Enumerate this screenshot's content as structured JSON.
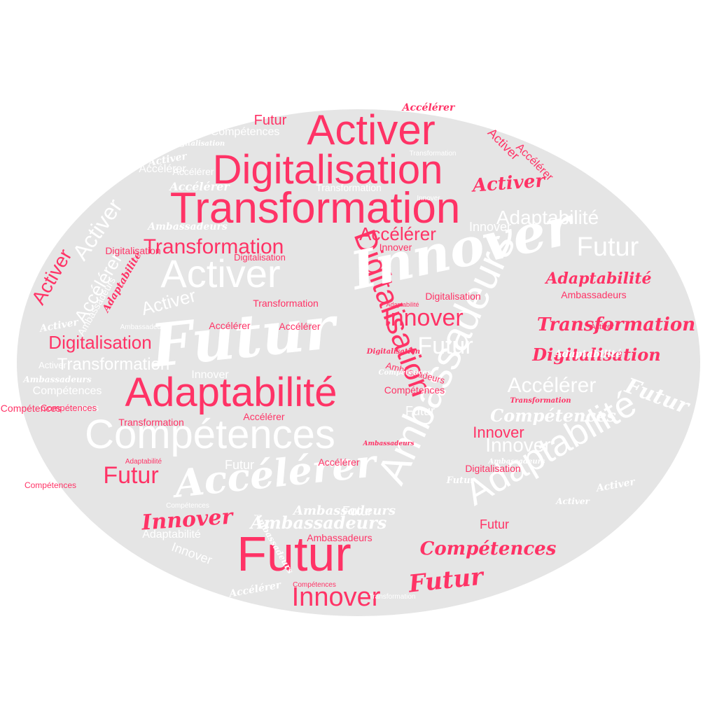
{
  "colors": {
    "background": "#ffffff",
    "ellipse": "#e5e5e5",
    "pink": "#ff3366",
    "white": "#ffffff"
  },
  "words": [
    {
      "text": "Activer",
      "color": "pink",
      "style": "sans"
    },
    {
      "text": "Digitalisation",
      "color": "pink",
      "style": "sans"
    },
    {
      "text": "Transformation",
      "color": "pink",
      "style": "sans"
    },
    {
      "text": "Digitalisation",
      "color": "pink",
      "style": "sans"
    },
    {
      "text": "Innover",
      "color": "white",
      "style": "script"
    },
    {
      "text": "Futur",
      "color": "white",
      "style": "script"
    },
    {
      "text": "Adaptabilité",
      "color": "pink",
      "style": "sans"
    },
    {
      "text": "Compétences",
      "color": "white",
      "style": "sans"
    },
    {
      "text": "Ambassadeurs",
      "color": "white",
      "style": "sans"
    },
    {
      "text": "Adaptabilité",
      "color": "white",
      "style": "sans"
    },
    {
      "text": "Accélérer",
      "color": "white",
      "style": "script"
    },
    {
      "text": "Futur",
      "color": "pink",
      "style": "sans"
    },
    {
      "text": "Innover",
      "color": "pink",
      "style": "sans"
    },
    {
      "text": "Activer",
      "color": "white",
      "style": "sans"
    },
    {
      "text": "Futur",
      "color": "white",
      "style": "sans"
    },
    {
      "text": "Adaptabilité",
      "color": "white",
      "style": "sans"
    },
    {
      "text": "Transformation",
      "color": "pink",
      "style": "sans"
    },
    {
      "text": "Accélérer",
      "color": "pink",
      "style": "sans"
    },
    {
      "text": "Adaptabilité",
      "color": "pink",
      "style": "script"
    },
    {
      "text": "Transformation",
      "color": "pink",
      "style": "script"
    },
    {
      "text": "Digitalisation",
      "color": "pink",
      "style": "script"
    },
    {
      "text": "Innover",
      "color": "pink",
      "style": "sans"
    },
    {
      "text": "Futur",
      "color": "white",
      "style": "sans"
    },
    {
      "text": "Accélérer",
      "color": "white",
      "style": "sans"
    },
    {
      "text": "Innover",
      "color": "pink",
      "style": "script"
    },
    {
      "text": "Compétences",
      "color": "pink",
      "style": "script"
    },
    {
      "text": "Futur",
      "color": "pink",
      "style": "script"
    },
    {
      "text": "Activer",
      "color": "pink",
      "style": "script"
    },
    {
      "text": "Activer",
      "color": "white",
      "style": "sans"
    },
    {
      "text": "Activer",
      "color": "pink",
      "style": "sans"
    },
    {
      "text": "Accélérer",
      "color": "white",
      "style": "sans"
    },
    {
      "text": "Futur",
      "color": "white",
      "style": "script"
    },
    {
      "text": "Compétences",
      "color": "white",
      "style": "script"
    },
    {
      "text": "Ambassadeurs",
      "color": "white",
      "style": "script"
    },
    {
      "text": "Innover",
      "color": "white",
      "style": "sans"
    },
    {
      "text": "Accélérer",
      "color": "pink",
      "style": "sans"
    },
    {
      "text": "Activer",
      "color": "pink",
      "style": "sans"
    },
    {
      "text": "Activer",
      "color": "white",
      "style": "sans"
    },
    {
      "text": "Digitalisation",
      "color": "pink",
      "style": "sans"
    },
    {
      "text": "Transformation",
      "color": "white",
      "style": "sans"
    },
    {
      "text": "Futur",
      "color": "pink",
      "style": "sans"
    },
    {
      "text": "Compétences",
      "color": "white",
      "style": "sans"
    },
    {
      "text": "Compétences",
      "color": "white",
      "style": "sans"
    },
    {
      "text": "Ambassadeurs",
      "color": "white",
      "style": "sans"
    },
    {
      "text": "Innover",
      "color": "white",
      "style": "sans"
    },
    {
      "text": "Adaptabilité",
      "color": "white",
      "style": "sans"
    },
    {
      "text": "Ambassadeurs",
      "color": "white",
      "style": "script"
    },
    {
      "text": "Accélérer",
      "color": "white",
      "style": "script"
    },
    {
      "text": "Innover",
      "color": "white",
      "style": "sans"
    },
    {
      "text": "Futur",
      "color": "pink",
      "style": "sans"
    },
    {
      "text": "Accélérer",
      "color": "pink",
      "style": "sans"
    },
    {
      "text": "Innover",
      "color": "pink",
      "style": "sans"
    },
    {
      "text": "Accélérer",
      "color": "pink",
      "style": "script"
    },
    {
      "text": "Activer",
      "color": "white",
      "style": "script"
    },
    {
      "text": "Ambassadeurs",
      "color": "white",
      "style": "sans"
    },
    {
      "text": "Digitalisation",
      "color": "pink",
      "style": "sans"
    },
    {
      "text": "Compétences",
      "color": "pink",
      "style": "sans"
    },
    {
      "text": "Transformation",
      "color": "pink",
      "style": "sans"
    },
    {
      "text": "Accélérer",
      "color": "pink",
      "style": "sans"
    },
    {
      "text": "Ambassadeurs",
      "color": "pink",
      "style": "sans"
    },
    {
      "text": "Ambassadeurs",
      "color": "pink",
      "style": "sans"
    },
    {
      "text": "Compétences",
      "color": "pink",
      "style": "sans"
    },
    {
      "text": "Digitalisation",
      "color": "pink",
      "style": "sans"
    },
    {
      "text": "Futur",
      "color": "white",
      "style": "sans"
    },
    {
      "text": "Futur",
      "color": "white",
      "style": "sans"
    },
    {
      "text": "Digitalisation",
      "color": "pink",
      "style": "sans"
    },
    {
      "text": "Accélérer",
      "color": "pink",
      "style": "sans"
    },
    {
      "text": "Adaptabilité",
      "color": "pink",
      "style": "script"
    },
    {
      "text": "Ambassadeurs",
      "color": "white",
      "style": "script"
    },
    {
      "text": "Futur",
      "color": "white",
      "style": "sans"
    },
    {
      "text": "Activer",
      "color": "white",
      "style": "sans"
    },
    {
      "text": "Accélérer",
      "color": "white",
      "style": "script"
    },
    {
      "text": "Compétences",
      "color": "pink",
      "style": "sans"
    },
    {
      "text": "Transformation",
      "color": "white",
      "style": "sans"
    },
    {
      "text": "Ambassadeurs",
      "color": "white",
      "style": "script"
    },
    {
      "text": "Adaptabilité",
      "color": "white",
      "style": "script"
    },
    {
      "text": "Activer",
      "color": "white",
      "style": "script"
    },
    {
      "text": "Innover",
      "color": "white",
      "style": "sans"
    },
    {
      "text": "Compétences",
      "color": "white",
      "style": "sans"
    },
    {
      "text": "Accélérer",
      "color": "white",
      "style": "sans"
    },
    {
      "text": "Futur",
      "color": "pink",
      "style": "sans"
    },
    {
      "text": "Accélérer",
      "color": "pink",
      "style": "sans"
    },
    {
      "text": "Activer",
      "color": "pink",
      "style": "sans"
    },
    {
      "text": "Innover",
      "color": "pink",
      "style": "sans"
    },
    {
      "text": "Transformation",
      "color": "pink",
      "style": "sans"
    },
    {
      "text": "Digitalisation",
      "color": "pink",
      "style": "sans"
    },
    {
      "text": "Ambassadeurs",
      "color": "pink",
      "style": "sans"
    },
    {
      "text": "Adaptabilité",
      "color": "pink",
      "style": "sans"
    },
    {
      "text": "Compétences",
      "color": "pink",
      "style": "sans"
    },
    {
      "text": "Activer",
      "color": "white",
      "style": "script"
    },
    {
      "text": "Accélérer",
      "color": "white",
      "style": "sans"
    },
    {
      "text": "Transformation",
      "color": "pink",
      "style": "script"
    },
    {
      "text": "Digitalisation",
      "color": "pink",
      "style": "script"
    },
    {
      "text": "Ambassadeurs",
      "color": "pink",
      "style": "script"
    },
    {
      "text": "Futur",
      "color": "white",
      "style": "script"
    },
    {
      "text": "Compétences",
      "color": "white",
      "style": "sans"
    },
    {
      "text": "Transformation",
      "color": "white",
      "style": "sans"
    },
    {
      "text": "Adaptabilité",
      "color": "pink",
      "style": "sans"
    },
    {
      "text": "Compétences",
      "color": "white",
      "style": "script"
    },
    {
      "text": "Innover",
      "color": "white",
      "style": "sans"
    },
    {
      "text": "Activer",
      "color": "white",
      "style": "script"
    },
    {
      "text": "Ambassadeurs",
      "color": "white",
      "style": "script"
    },
    {
      "text": "Compétences",
      "color": "pink",
      "style": "sans"
    },
    {
      "text": "Transformation",
      "color": "white",
      "style": "sans"
    },
    {
      "text": "Ambassadeurs",
      "color": "white",
      "style": "script"
    },
    {
      "text": "Digitalisation",
      "color": "white",
      "style": "script"
    }
  ]
}
